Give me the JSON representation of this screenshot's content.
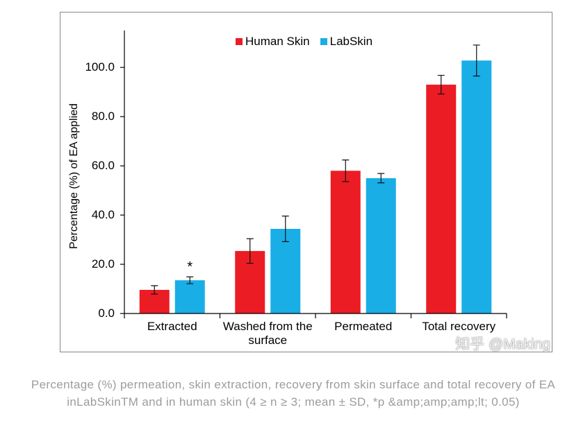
{
  "chart_data": {
    "type": "bar",
    "title": "",
    "xlabel": "",
    "ylabel": "Percentage (%) of EA applied",
    "categories": [
      "Extracted",
      "Washed from the surface",
      "Permeated",
      "Total recovery"
    ],
    "series": [
      {
        "name": "Human Skin",
        "color": "#ec1c24",
        "values": [
          9.6,
          25.4,
          58.0,
          93.0
        ],
        "errors": [
          1.7,
          5.0,
          4.4,
          3.8
        ]
      },
      {
        "name": "LabSkin",
        "color": "#19aee6",
        "values": [
          13.5,
          34.4,
          55.0,
          102.8
        ],
        "errors": [
          1.4,
          5.2,
          1.9,
          6.3
        ]
      }
    ],
    "ylim": [
      0,
      115
    ],
    "yticks": [
      0,
      20,
      40,
      60,
      80,
      100
    ],
    "ytick_labels": [
      "0.0",
      "20.0",
      "40.0",
      "60.0",
      "80.0",
      "100.0"
    ],
    "grid": false,
    "legend_position": "top-center",
    "annotations": [
      {
        "text": "*",
        "category": "Extracted",
        "series": "LabSkin"
      }
    ]
  },
  "watermark": "知乎 @Making",
  "caption": {
    "line1": "Percentage (%) permeation, skin extraction, recovery from skin surface and total recovery of EA",
    "line2": "inLabSkinTM and in human skin (4 ≥ n ≥ 3; mean ± SD, *p &amp;amp;amp;lt; 0.05)"
  }
}
